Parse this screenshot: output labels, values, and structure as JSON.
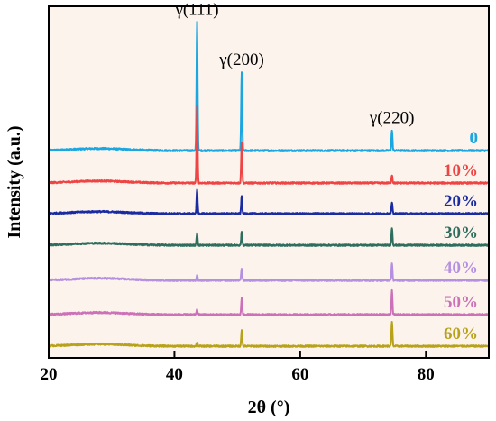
{
  "chart_data": {
    "type": "line",
    "title": "",
    "xlabel": "2θ (°)",
    "ylabel": "Intensity (a.u.)",
    "xlim": [
      20,
      90
    ],
    "xticks": [
      20,
      40,
      60,
      80
    ],
    "y_ticks_shown": false,
    "grid": false,
    "background_color": "#fbf3ec",
    "peak_annotations": [
      {
        "label": "γ(111)",
        "x": 43.6
      },
      {
        "label": "γ(200)",
        "x": 50.7
      },
      {
        "label": "γ(220)",
        "x": 74.6
      }
    ],
    "series": [
      {
        "name": "0",
        "color": "#1aa6e0",
        "peaks": [
          {
            "x": 43.6,
            "height": 95
          },
          {
            "x": 50.7,
            "height": 58
          },
          {
            "x": 74.6,
            "height": 15
          }
        ]
      },
      {
        "name": "10%",
        "color": "#ee4444",
        "peaks": [
          {
            "x": 43.6,
            "height": 58
          },
          {
            "x": 50.7,
            "height": 30
          },
          {
            "x": 74.6,
            "height": 6
          }
        ]
      },
      {
        "name": "20%",
        "color": "#1a2aa0",
        "peaks": [
          {
            "x": 43.6,
            "height": 18
          },
          {
            "x": 50.7,
            "height": 13
          },
          {
            "x": 74.6,
            "height": 8
          }
        ]
      },
      {
        "name": "30%",
        "color": "#2f6e5e",
        "peaks": [
          {
            "x": 43.6,
            "height": 9
          },
          {
            "x": 50.7,
            "height": 10
          },
          {
            "x": 74.6,
            "height": 13
          }
        ]
      },
      {
        "name": "40%",
        "color": "#b58fe0",
        "peaks": [
          {
            "x": 43.6,
            "height": 4
          },
          {
            "x": 50.7,
            "height": 9
          },
          {
            "x": 74.6,
            "height": 12
          }
        ]
      },
      {
        "name": "50%",
        "color": "#cc70b8",
        "peaks": [
          {
            "x": 43.6,
            "height": 4
          },
          {
            "x": 50.7,
            "height": 12
          },
          {
            "x": 74.6,
            "height": 18
          }
        ]
      },
      {
        "name": "60%",
        "color": "#b8a21a",
        "peaks": [
          {
            "x": 43.6,
            "height": 3
          },
          {
            "x": 50.7,
            "height": 12
          },
          {
            "x": 74.6,
            "height": 18
          }
        ]
      }
    ]
  }
}
